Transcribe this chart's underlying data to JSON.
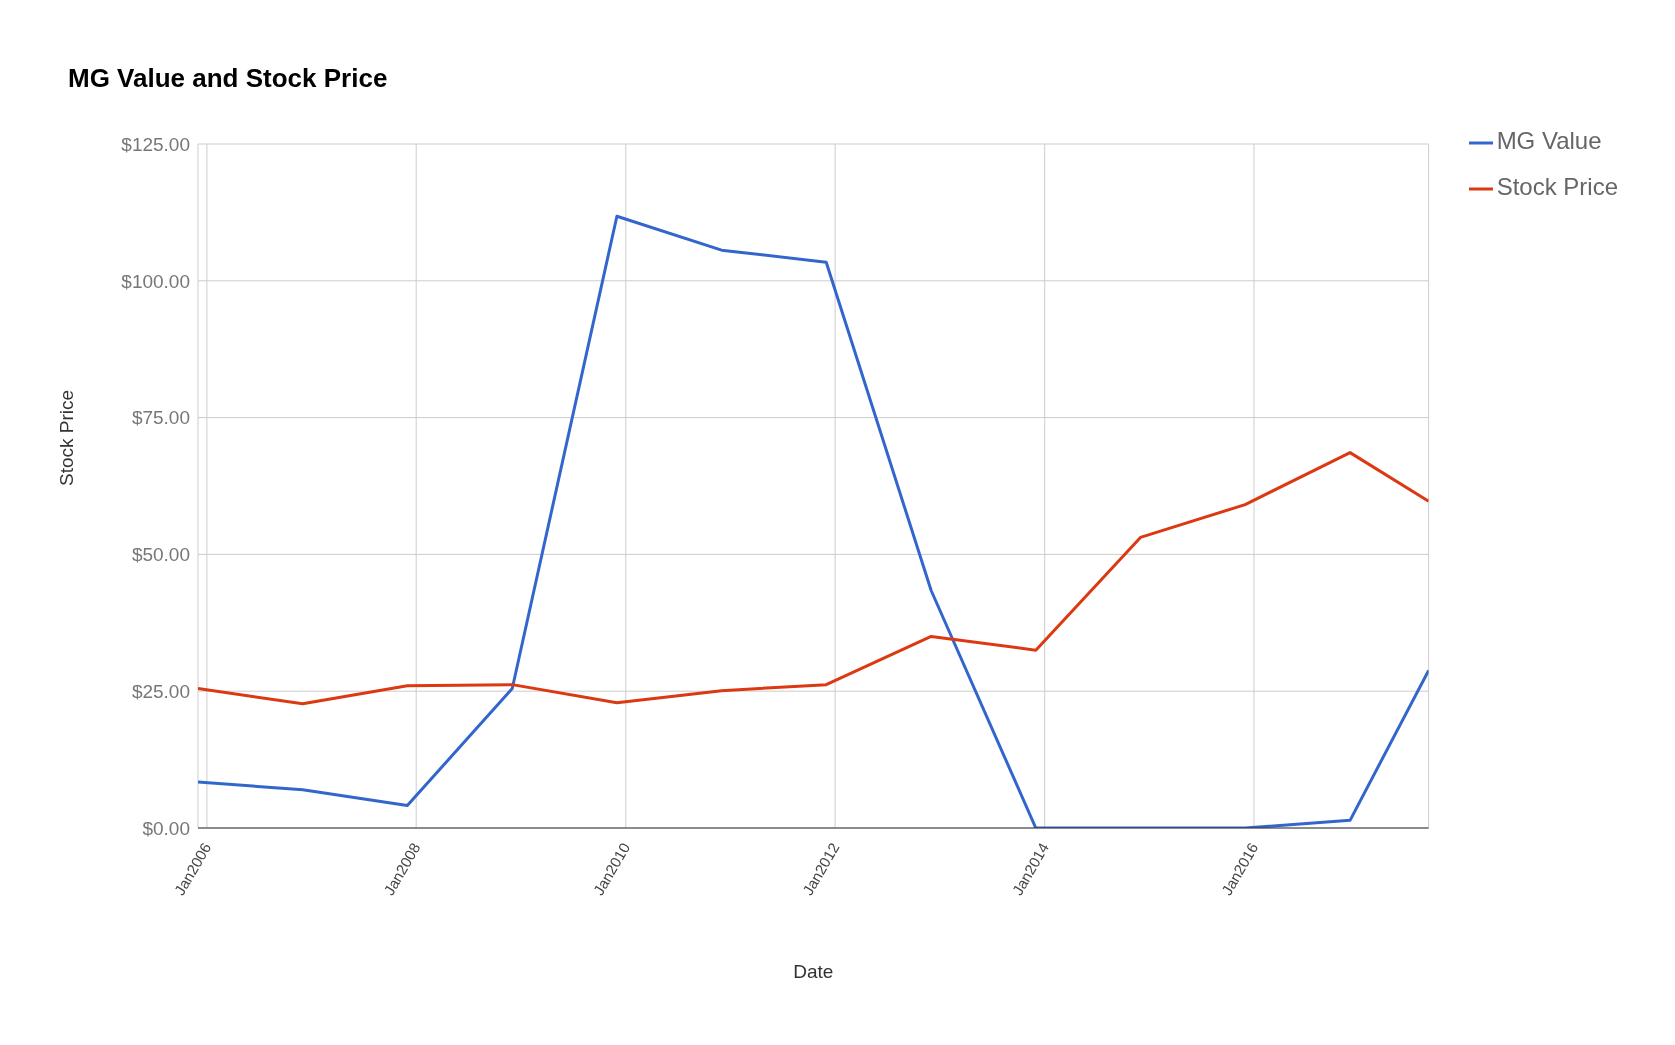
{
  "chart_data": {
    "type": "line",
    "title": "MG Value and Stock Price",
    "xlabel": "Date",
    "ylabel": "Stock Price",
    "x": [
      "2005-12-01",
      "2006-12-01",
      "2007-12-01",
      "2008-12-01",
      "2009-12-01",
      "2010-12-01",
      "2011-12-01",
      "2012-12-01",
      "2013-12-01",
      "2014-12-01",
      "2015-12-01",
      "2016-12-01",
      "2017-09-01"
    ],
    "series": [
      {
        "name": "MG Value",
        "color": "#3366cc",
        "values": [
          8.4,
          7.0,
          4.1,
          25.5,
          111.8,
          105.6,
          103.4,
          43.4,
          0,
          0,
          0,
          1.4,
          28.8
        ]
      },
      {
        "name": "Stock Price",
        "color": "#dc3912",
        "values": [
          25.5,
          22.7,
          26.0,
          26.2,
          22.9,
          25.1,
          26.2,
          35.0,
          32.5,
          53.1,
          59.1,
          68.6,
          59.7
        ]
      }
    ],
    "xlim": [
      "2005-12-01",
      "2017-09-01"
    ],
    "xticks": [
      {
        "value": "2006-01-01",
        "label": "Jan2006"
      },
      {
        "value": "2008-01-01",
        "label": "Jan2008"
      },
      {
        "value": "2010-01-01",
        "label": "Jan2010"
      },
      {
        "value": "2012-01-01",
        "label": "Jan2012"
      },
      {
        "value": "2014-01-01",
        "label": "Jan2014"
      },
      {
        "value": "2016-01-01",
        "label": "Jan2016"
      }
    ],
    "ylim": [
      0,
      125
    ],
    "yticks": [
      {
        "value": 0,
        "label": "$0.00"
      },
      {
        "value": 25,
        "label": "$25.00"
      },
      {
        "value": 50,
        "label": "$50.00"
      },
      {
        "value": 75,
        "label": "$75.00"
      },
      {
        "value": 100,
        "label": "$100.00"
      },
      {
        "value": 125,
        "label": "$125.00"
      }
    ],
    "grid": true,
    "legend": "top right",
    "marker": "none",
    "line_style": "solid"
  }
}
